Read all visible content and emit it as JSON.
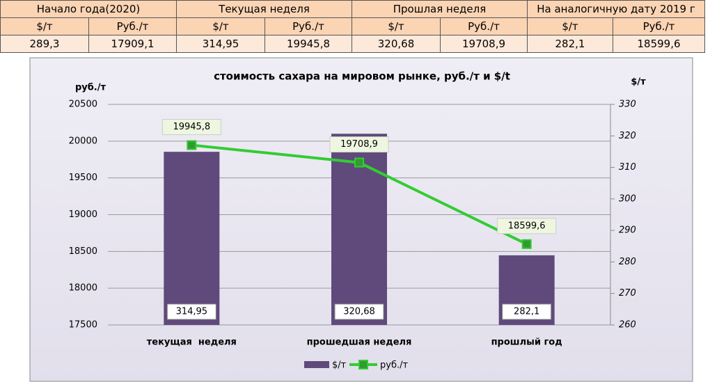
{
  "table": {
    "header": [
      "Начало года(2020)",
      "Текущая неделя",
      "Прошлая неделя",
      "На аналогичную дату 2019 г"
    ],
    "subheader": [
      "$/т",
      "Руб./т",
      "$/т",
      "Руб./т",
      "$/т",
      "Руб./т",
      "$/т",
      "Руб./т"
    ],
    "rows": [
      [
        "289,3",
        "17909,1",
        "314,95",
        "19945,8",
        "320,68",
        "19708,9",
        "282,1",
        "18599,6"
      ]
    ]
  },
  "chart_data": {
    "type": "bar",
    "title": "стоимость сахара на мировом рынке, руб./т и $/t",
    "y_label": "руб./т",
    "y2_label": "$/т",
    "categories": [
      "текущая  неделя",
      "прошедшая неделя",
      "прошлый год"
    ],
    "series": [
      {
        "name": "$/т",
        "type": "bar",
        "axis": "y2",
        "color": "#5f4a7b",
        "values": [
          314.95,
          320.68,
          282.1
        ],
        "value_labels": [
          "314,95",
          "320,68",
          "282,1"
        ]
      },
      {
        "name": "руб./т",
        "type": "line",
        "color": "#33cc33",
        "marker_color": "#339933",
        "values": [
          19945.8,
          19708.9,
          18599.6
        ],
        "value_labels": [
          "19945,8",
          "19708,9",
          "18599,6"
        ]
      }
    ],
    "ylim": [
      17500,
      20500
    ],
    "yticks": [
      17500,
      18000,
      18500,
      19000,
      19500,
      20000,
      20500
    ],
    "y2lim": [
      260,
      330
    ],
    "y2ticks": [
      260,
      270,
      280,
      290,
      300,
      310,
      320,
      330
    ],
    "grid": true,
    "legend": "bottom"
  }
}
